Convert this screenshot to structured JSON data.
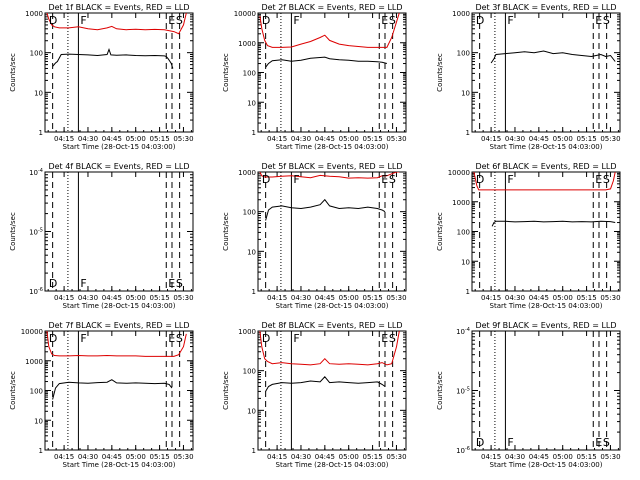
{
  "figure": {
    "background": "#ffffff",
    "black_color": "#000000",
    "red_color": "#dd0000"
  },
  "chart_data": [
    {
      "type": "line",
      "title": "Det 1f BLACK = Events, RED = LLD",
      "ylabel": "Counts/sec",
      "xlabel": "Start Time (28-Oct-15 04:03:00)",
      "xlim": [
        4.05,
        5.6
      ],
      "x_ticks": [
        "04:15",
        "04:30",
        "04:45",
        "05:00",
        "05:15",
        "05:30"
      ],
      "yscale": "log",
      "ylim": [
        1,
        1000
      ],
      "y_ticks": [
        "1",
        "10",
        "100",
        "1000"
      ],
      "markers": [
        {
          "label": "D",
          "x": 4.07
        },
        {
          "label": "F",
          "x": 4.4
        },
        {
          "label": "E",
          "x": 5.32
        },
        {
          "label": "S",
          "x": 5.4
        }
      ],
      "dashed_lines": [
        4.13,
        5.32,
        5.38,
        5.46
      ],
      "dotted_lines": [
        4.29
      ],
      "solid_lines": [
        4.4
      ],
      "series": [
        {
          "name": "Events",
          "color": "black",
          "x": [
            4.13,
            4.16,
            4.18,
            4.22,
            4.3,
            4.4,
            4.5,
            4.6,
            4.7,
            4.72,
            4.74,
            4.8,
            4.9,
            5.0,
            5.1,
            5.2,
            5.3,
            5.32,
            5.34,
            5.37,
            5.39
          ],
          "y": [
            45,
            55,
            60,
            90,
            92,
            90,
            88,
            85,
            90,
            120,
            88,
            86,
            88,
            85,
            84,
            85,
            83,
            80,
            70,
            55,
            40
          ]
        },
        {
          "name": "LLD",
          "color": "red",
          "x": [
            4.07,
            4.09,
            4.12,
            4.15,
            4.2,
            4.3,
            4.4,
            4.5,
            4.6,
            4.7,
            4.75,
            4.8,
            4.9,
            5.0,
            5.1,
            5.2,
            5.3,
            5.4,
            5.45,
            5.5,
            5.53
          ],
          "y": [
            1000,
            700,
            500,
            450,
            420,
            420,
            450,
            400,
            380,
            420,
            460,
            400,
            380,
            390,
            380,
            385,
            380,
            340,
            300,
            500,
            1000
          ]
        }
      ]
    },
    {
      "type": "line",
      "title": "Det 2f BLACK = Events, RED = LLD",
      "ylabel": "Counts/sec",
      "xlabel": "Start Time (28-Oct-15 04:03:00)",
      "xlim": [
        4.05,
        5.6
      ],
      "x_ticks": [
        "04:15",
        "04:30",
        "04:45",
        "05:00",
        "05:15",
        "05:30"
      ],
      "yscale": "log",
      "ylim": [
        1,
        10000
      ],
      "y_ticks": [
        "1",
        "10",
        "100",
        "1000",
        "10000"
      ],
      "markers": [
        {
          "label": "D",
          "x": 4.07
        },
        {
          "label": "F",
          "x": 4.4
        },
        {
          "label": "E",
          "x": 5.32
        },
        {
          "label": "S",
          "x": 5.4
        }
      ],
      "dashed_lines": [
        4.13,
        5.32,
        5.38,
        5.46
      ],
      "dotted_lines": [
        4.29
      ],
      "solid_lines": [
        4.4
      ],
      "series": [
        {
          "name": "Events",
          "color": "black",
          "x": [
            4.13,
            4.16,
            4.2,
            4.3,
            4.4,
            4.5,
            4.6,
            4.7,
            4.75,
            4.8,
            4.9,
            5.0,
            5.1,
            5.2,
            5.3,
            5.35,
            5.4
          ],
          "y": [
            150,
            200,
            250,
            270,
            240,
            260,
            300,
            320,
            330,
            290,
            270,
            260,
            240,
            240,
            230,
            220,
            200
          ]
        },
        {
          "name": "LLD",
          "color": "red",
          "x": [
            4.07,
            4.09,
            4.12,
            4.15,
            4.2,
            4.3,
            4.4,
            4.5,
            4.6,
            4.7,
            4.75,
            4.8,
            4.9,
            5.0,
            5.1,
            5.2,
            5.3,
            5.35,
            5.4,
            5.45,
            5.5,
            5.53
          ],
          "y": [
            8000,
            3000,
            1200,
            800,
            700,
            700,
            720,
            900,
            1100,
            1500,
            1800,
            1200,
            900,
            800,
            750,
            700,
            700,
            700,
            700,
            1500,
            5000,
            10000
          ]
        }
      ]
    },
    {
      "type": "line",
      "title": "Det 3f BLACK = Events, RED = LLD",
      "ylabel": "Counts/sec",
      "xlabel": "Start Time (28-Oct-15 04:03:00)",
      "xlim": [
        4.05,
        5.6
      ],
      "x_ticks": [
        "04:15",
        "04:30",
        "04:45",
        "05:00",
        "05:15",
        "05:30"
      ],
      "yscale": "log",
      "ylim": [
        1,
        1000
      ],
      "y_ticks": [
        "1",
        "10",
        "100",
        "1000"
      ],
      "markers": [
        {
          "label": "D",
          "x": 4.07
        },
        {
          "label": "F",
          "x": 4.4
        },
        {
          "label": "E",
          "x": 5.32
        },
        {
          "label": "S",
          "x": 5.4
        }
      ],
      "dashed_lines": [
        4.13,
        5.32,
        5.38,
        5.46
      ],
      "dotted_lines": [
        4.29
      ],
      "solid_lines": [
        4.4
      ],
      "series": [
        {
          "name": "Events",
          "color": "black",
          "x": [
            4.25,
            4.28,
            4.3,
            4.4,
            4.5,
            4.6,
            4.7,
            4.8,
            4.9,
            5.0,
            5.1,
            5.2,
            5.3,
            5.35,
            5.4,
            5.45,
            5.5,
            5.55
          ],
          "y": [
            55,
            70,
            90,
            95,
            100,
            105,
            100,
            110,
            95,
            100,
            90,
            85,
            80,
            85,
            90,
            80,
            85,
            60
          ]
        }
      ]
    },
    {
      "type": "line",
      "title": "Det 4f BLACK = Events, RED = LLD",
      "ylabel": "Counts/sec",
      "xlabel": "Start Time (28-Oct-15 04:03:00)",
      "xlim": [
        4.05,
        5.6
      ],
      "x_ticks": [
        "04:15",
        "04:30",
        "04:45",
        "05:00",
        "05:15",
        "05:30"
      ],
      "yscale": "log",
      "ylim": [
        1e-06,
        0.0001
      ],
      "y_ticks": [
        "10-6",
        "10-5",
        "10-4"
      ],
      "markers": [
        {
          "label": "D",
          "x": 4.07
        },
        {
          "label": "F",
          "x": 4.4
        },
        {
          "label": "E",
          "x": 5.32
        },
        {
          "label": "S",
          "x": 5.4
        }
      ],
      "dashed_lines": [
        4.13,
        5.32,
        5.38,
        5.46
      ],
      "dotted_lines": [
        4.29
      ],
      "solid_lines": [
        4.4
      ],
      "series": []
    },
    {
      "type": "line",
      "title": "Det 5f BLACK = Events, RED = LLD",
      "ylabel": "Counts/sec",
      "xlabel": "Start Time (28-Oct-15 04:03:00)",
      "xlim": [
        4.05,
        5.6
      ],
      "x_ticks": [
        "04:15",
        "04:30",
        "04:45",
        "05:00",
        "05:15",
        "05:30"
      ],
      "yscale": "log",
      "ylim": [
        1,
        1000
      ],
      "y_ticks": [
        "1",
        "10",
        "100",
        "1000"
      ],
      "markers": [
        {
          "label": "D",
          "x": 4.07
        },
        {
          "label": "F",
          "x": 4.4
        },
        {
          "label": "E",
          "x": 5.32
        },
        {
          "label": "S",
          "x": 5.4
        }
      ],
      "dashed_lines": [
        4.13,
        5.32,
        5.38,
        5.46
      ],
      "dotted_lines": [
        4.29
      ],
      "solid_lines": [
        4.4
      ],
      "series": [
        {
          "name": "Events",
          "color": "black",
          "x": [
            4.13,
            4.16,
            4.2,
            4.3,
            4.4,
            4.5,
            4.6,
            4.7,
            4.75,
            4.8,
            4.9,
            5.0,
            5.1,
            5.2,
            5.3,
            5.35,
            5.38
          ],
          "y": [
            60,
            110,
            130,
            140,
            125,
            120,
            130,
            150,
            200,
            140,
            120,
            125,
            120,
            130,
            120,
            110,
            100
          ]
        },
        {
          "name": "LLD",
          "color": "red",
          "x": [
            4.07,
            4.09,
            4.12,
            4.2,
            4.3,
            4.4,
            4.5,
            4.6,
            4.7,
            4.8,
            4.9,
            5.0,
            5.1,
            5.2,
            5.3,
            5.35,
            5.4,
            5.45,
            5.5,
            5.53
          ],
          "y": [
            1000,
            800,
            750,
            750,
            780,
            800,
            760,
            720,
            820,
            780,
            760,
            700,
            720,
            700,
            720,
            800,
            800,
            900,
            1000,
            1000
          ]
        }
      ]
    },
    {
      "type": "line",
      "title": "Det 6f BLACK = Events, RED = LLD",
      "ylabel": "Counts/sec",
      "xlabel": "Start Time (28-Oct-15 04:03:00)",
      "xlim": [
        4.05,
        5.6
      ],
      "x_ticks": [
        "04:15",
        "04:30",
        "04:45",
        "05:00",
        "05:15",
        "05:30"
      ],
      "yscale": "log",
      "ylim": [
        1,
        10000
      ],
      "y_ticks": [
        "1",
        "10",
        "100",
        "1000",
        "10000"
      ],
      "markers": [
        {
          "label": "D",
          "x": 4.07
        },
        {
          "label": "F",
          "x": 4.4
        },
        {
          "label": "E",
          "x": 5.32
        },
        {
          "label": "S",
          "x": 5.4
        }
      ],
      "dashed_lines": [
        4.13,
        5.32,
        5.38,
        5.46
      ],
      "dotted_lines": [
        4.29
      ],
      "solid_lines": [
        4.4
      ],
      "series": [
        {
          "name": "Events",
          "color": "black",
          "x": [
            4.26,
            4.28,
            4.3,
            4.4,
            4.5,
            4.6,
            4.7,
            4.8,
            4.9,
            5.0,
            5.1,
            5.2,
            5.3,
            5.4,
            5.5,
            5.55
          ],
          "y": [
            150,
            200,
            220,
            220,
            210,
            215,
            220,
            210,
            215,
            220,
            210,
            215,
            210,
            220,
            215,
            200
          ]
        },
        {
          "name": "LLD",
          "color": "red",
          "x": [
            4.07,
            4.08,
            4.1,
            4.12,
            4.2,
            4.3,
            4.4,
            4.5,
            4.6,
            4.7,
            4.8,
            4.9,
            5.0,
            5.1,
            5.2,
            5.3,
            5.4,
            5.45,
            5.5,
            5.53,
            5.55
          ],
          "y": [
            10000,
            7000,
            3500,
            2500,
            2500,
            2500,
            2500,
            2500,
            2500,
            2500,
            2500,
            2500,
            2500,
            2500,
            2500,
            2500,
            2500,
            2500,
            2700,
            5000,
            10000
          ]
        }
      ]
    },
    {
      "type": "line",
      "title": "Det 7f BLACK = Events, RED = LLD",
      "ylabel": "Counts/sec",
      "xlabel": "Start Time (28-Oct-15 04:03:00)",
      "xlim": [
        4.05,
        5.6
      ],
      "x_ticks": [
        "04:15",
        "04:30",
        "04:45",
        "05:00",
        "05:15",
        "05:30"
      ],
      "yscale": "log",
      "ylim": [
        1,
        10000
      ],
      "y_ticks": [
        "1",
        "10",
        "100",
        "1000",
        "10000"
      ],
      "markers": [
        {
          "label": "D",
          "x": 4.07
        },
        {
          "label": "F",
          "x": 4.4
        },
        {
          "label": "E",
          "x": 5.32
        },
        {
          "label": "S",
          "x": 5.4
        }
      ],
      "dashed_lines": [
        4.13,
        5.32,
        5.38,
        5.46
      ],
      "dotted_lines": [
        4.29
      ],
      "solid_lines": [
        4.4
      ],
      "series": [
        {
          "name": "Events",
          "color": "black",
          "x": [
            4.13,
            4.16,
            4.2,
            4.3,
            4.4,
            4.5,
            4.6,
            4.7,
            4.75,
            4.8,
            4.9,
            5.0,
            5.1,
            5.2,
            5.3,
            5.35,
            5.38
          ],
          "y": [
            50,
            120,
            170,
            190,
            180,
            175,
            185,
            190,
            230,
            180,
            175,
            180,
            175,
            170,
            175,
            160,
            120
          ]
        },
        {
          "name": "LLD",
          "color": "red",
          "x": [
            4.07,
            4.09,
            4.12,
            4.15,
            4.2,
            4.3,
            4.4,
            4.5,
            4.6,
            4.7,
            4.8,
            4.9,
            5.0,
            5.1,
            5.2,
            5.3,
            5.35,
            5.4,
            5.45,
            5.5,
            5.53
          ],
          "y": [
            10000,
            3000,
            1700,
            1500,
            1450,
            1450,
            1500,
            1450,
            1450,
            1500,
            1450,
            1450,
            1450,
            1400,
            1400,
            1400,
            1400,
            1400,
            1600,
            3000,
            8000
          ]
        }
      ]
    },
    {
      "type": "line",
      "title": "Det 8f BLACK = Events, RED = LLD",
      "ylabel": "Counts/sec",
      "xlabel": "Start Time (28-Oct-15 04:03:00)",
      "xlim": [
        4.05,
        5.6
      ],
      "x_ticks": [
        "04:15",
        "04:30",
        "04:45",
        "05:00",
        "05:15",
        "05:30"
      ],
      "yscale": "log",
      "ylim": [
        1,
        1000
      ],
      "y_ticks": [
        "1",
        "10",
        "100",
        "1000"
      ],
      "markers": [
        {
          "label": "D",
          "x": 4.07
        },
        {
          "label": "F",
          "x": 4.4
        },
        {
          "label": "E",
          "x": 5.32
        },
        {
          "label": "S",
          "x": 5.4
        }
      ],
      "dashed_lines": [
        4.13,
        5.32,
        5.38,
        5.46
      ],
      "dotted_lines": [
        4.29
      ],
      "solid_lines": [
        4.4
      ],
      "series": [
        {
          "name": "Events",
          "color": "black",
          "x": [
            4.13,
            4.16,
            4.2,
            4.3,
            4.4,
            4.5,
            4.6,
            4.7,
            4.75,
            4.8,
            4.9,
            5.0,
            5.1,
            5.2,
            5.3,
            5.35,
            5.38
          ],
          "y": [
            30,
            40,
            45,
            50,
            48,
            50,
            55,
            52,
            70,
            50,
            52,
            50,
            48,
            50,
            52,
            45,
            40
          ]
        },
        {
          "name": "LLD",
          "color": "red",
          "x": [
            4.07,
            4.09,
            4.12,
            4.15,
            4.2,
            4.3,
            4.4,
            4.5,
            4.6,
            4.7,
            4.75,
            4.8,
            4.9,
            5.0,
            5.1,
            5.2,
            5.3,
            5.35,
            5.4,
            5.45,
            5.5,
            5.53
          ],
          "y": [
            1000,
            400,
            200,
            170,
            150,
            160,
            150,
            145,
            140,
            150,
            200,
            150,
            145,
            150,
            145,
            140,
            150,
            160,
            140,
            150,
            400,
            1000
          ]
        }
      ]
    },
    {
      "type": "line",
      "title": "Det 9f BLACK = Events, RED = LLD",
      "ylabel": "Counts/sec",
      "xlabel": "Start Time (28-Oct-15 04:03:00)",
      "xlim": [
        4.05,
        5.6
      ],
      "x_ticks": [
        "04:15",
        "04:30",
        "04:45",
        "05:00",
        "05:15",
        "05:30"
      ],
      "yscale": "log",
      "ylim": [
        1e-06,
        0.0001
      ],
      "y_ticks": [
        "10-6",
        "10-5",
        "10-4"
      ],
      "markers": [
        {
          "label": "D",
          "x": 4.07
        },
        {
          "label": "F",
          "x": 4.4
        },
        {
          "label": "E",
          "x": 5.32
        },
        {
          "label": "S",
          "x": 5.4
        }
      ],
      "dashed_lines": [
        4.13,
        5.32,
        5.38,
        5.46
      ],
      "dotted_lines": [
        4.29
      ],
      "solid_lines": [
        4.4
      ],
      "series": []
    }
  ]
}
